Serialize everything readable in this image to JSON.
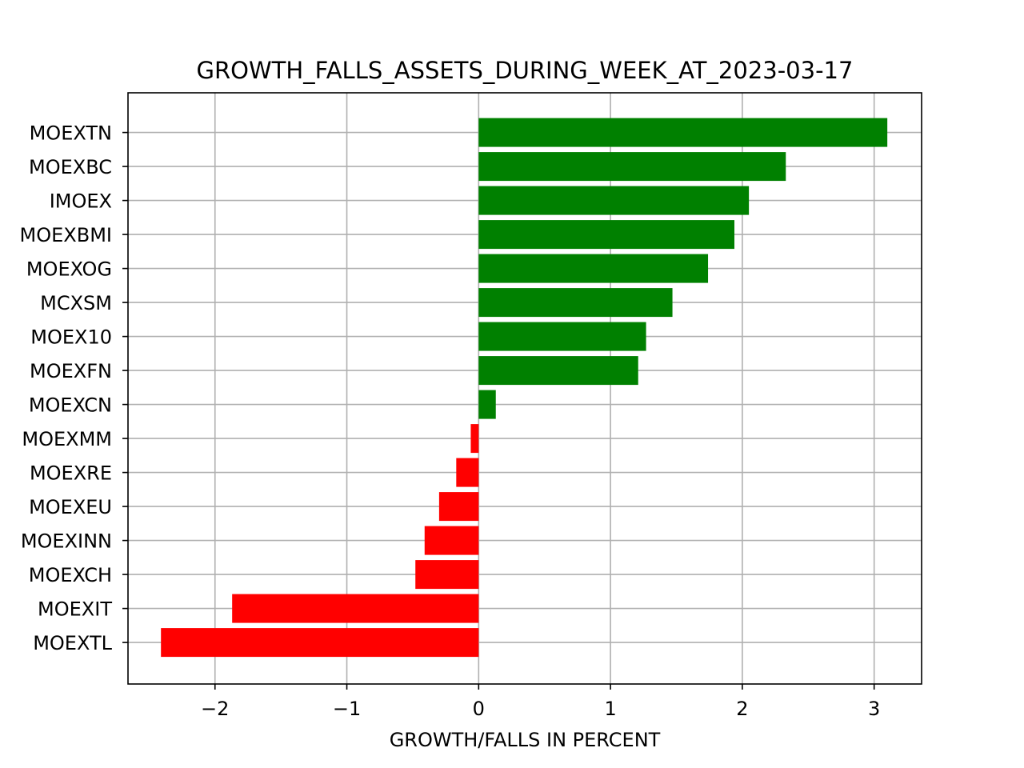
{
  "chart_data": {
    "type": "bar",
    "orientation": "horizontal",
    "title": "GROWTH_FALLS_ASSETS_DURING_WEEK_AT_2023-03-17",
    "xlabel": "GROWTH/FALLS IN PERCENT",
    "ylabel": "",
    "xlim": [
      -2.66,
      3.36
    ],
    "xticks": [
      -2,
      -1,
      0,
      1,
      2,
      3
    ],
    "xtick_labels": [
      "−2",
      "−1",
      "0",
      "1",
      "2",
      "3"
    ],
    "grid": true,
    "colors": {
      "positive": "#008000",
      "negative": "#ff0000"
    },
    "categories": [
      "MOEXTN",
      "MOEXBC",
      "IMOEX",
      "MOEXBMI",
      "MOEXOG",
      "MCXSM",
      "MOEX10",
      "MOEXFN",
      "MOEXCN",
      "MOEXMM",
      "MOEXRE",
      "MOEXEU",
      "MOEXINN",
      "MOEXCH",
      "MOEXIT",
      "MOEXTL"
    ],
    "values": [
      3.1,
      2.33,
      2.05,
      1.94,
      1.74,
      1.47,
      1.27,
      1.21,
      0.13,
      -0.06,
      -0.17,
      -0.3,
      -0.41,
      -0.48,
      -1.87,
      -2.41
    ]
  }
}
